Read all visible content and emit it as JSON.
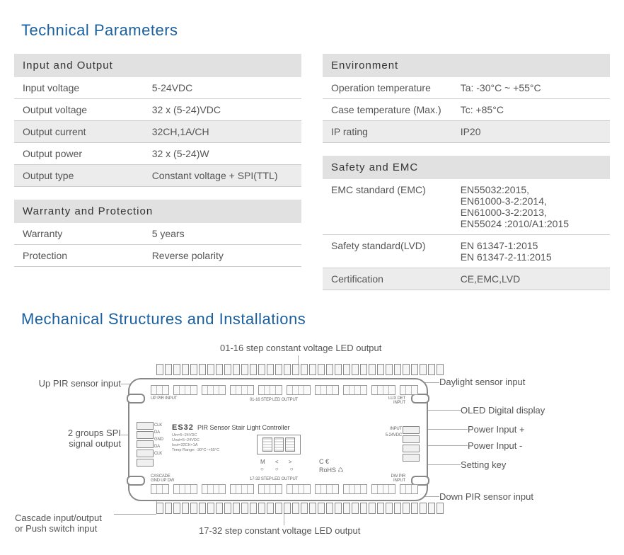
{
  "titles": {
    "tech": "Technical Parameters",
    "mech": "Mechanical Structures and Installations"
  },
  "tables": {
    "io": {
      "header": "Input and Output",
      "rows": [
        {
          "k": "Input voltage",
          "v": "5-24VDC"
        },
        {
          "k": "Output voltage",
          "v": "32 x (5-24)VDC"
        },
        {
          "k": "Output current",
          "v": "32CH,1A/CH"
        },
        {
          "k": "Output power",
          "v": "32 x (5-24)W"
        },
        {
          "k": "Output type",
          "v": "Constant voltage + SPI(TTL)"
        }
      ]
    },
    "warranty": {
      "header": "Warranty and Protection",
      "rows": [
        {
          "k": "Warranty",
          "v": "5 years"
        },
        {
          "k": "Protection",
          "v": "Reverse polarity"
        }
      ]
    },
    "env": {
      "header": "Environment",
      "rows": [
        {
          "k": "Operation temperature",
          "v": "Ta: -30°C ~ +55°C"
        },
        {
          "k": "Case temperature (Max.)",
          "v": "Tc: +85°C"
        },
        {
          "k": "IP rating",
          "v": "IP20"
        }
      ]
    },
    "safety": {
      "header": "Safety and EMC",
      "rows": [
        {
          "k": "EMC standard (EMC)",
          "v": "EN55032:2015,\nEN61000-3-2:2014,\nEN61000-3-2:2013,\nEN55024 :2010/A1:2015"
        },
        {
          "k": "Safety standard(LVD)",
          "v": "EN 61347-1:2015\nEN 61347-2-11:2015"
        },
        {
          "k": "Certification",
          "v": "CE,EMC,LVD"
        }
      ]
    }
  },
  "diagram": {
    "product": "ES32",
    "product_sub": "PIR Sensor Stair Light Controller",
    "tiny": "Uin=5~24VDC\nUout=5~24VDC\nIout=32CH×1A\nTemp Range: -30°C~+55°C",
    "top_strip_label": "01-16 STEP LED OUTPUT",
    "bot_strip_label": "17-32 STEP LED OUTPUT",
    "btns": "M   <   >",
    "marks": "C €\nRoHS ♺",
    "callouts": {
      "top_center": "01-16 step constant voltage LED output",
      "up_pir": "Up PIR sensor input",
      "spi": "2 groups SPI\nsignal output",
      "cascade": "Cascade input/output\nor Push switch input",
      "bottom_center": "17-32 step constant voltage LED output",
      "daylight": "Daylight sensor input",
      "oled": "OLED Digital display",
      "pwr_p": "Power Input +",
      "pwr_n": "Power Input -",
      "setting": "Setting key",
      "down_pir": "Down PIR sensor input"
    },
    "inner_labels": {
      "up_pir": "UP PIR\nINPUT",
      "lux": "LUX DET\nINPUT",
      "cascade": "CASCADE\nGND UP DW",
      "dw_pir": "DW PIR\nINPUT",
      "spi": "CLK\nDA\nGND\nDA\nCLK",
      "pwr": "INPUT\n5-24VDC"
    }
  },
  "style": {
    "accent": "#1a5f9e",
    "header_bg": "#e1e1e1",
    "row_alt_bg": "#ececec",
    "border": "#cccccc",
    "text": "#555555"
  }
}
